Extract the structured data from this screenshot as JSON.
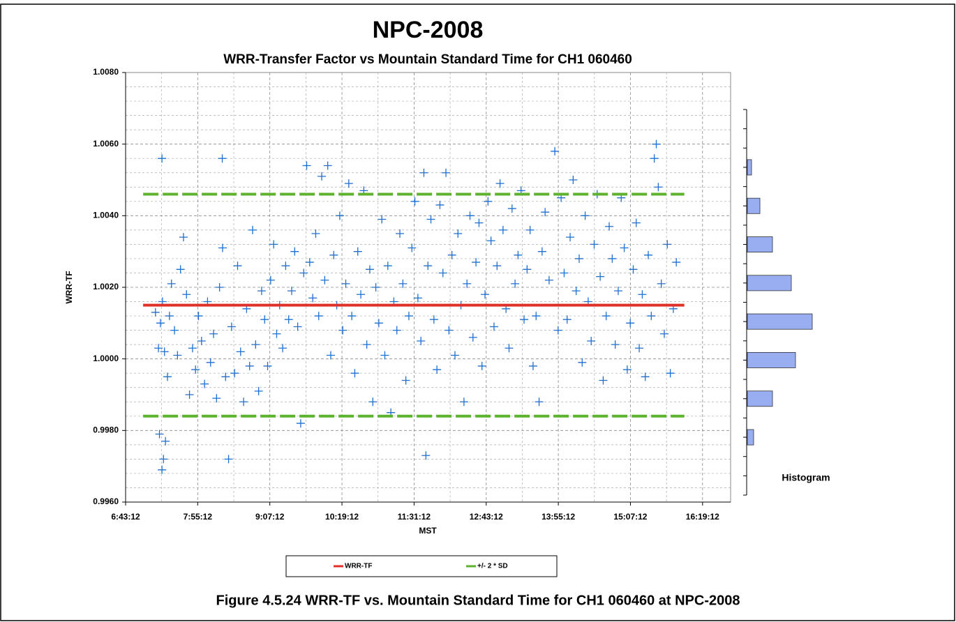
{
  "chart_data": [
    {
      "type": "scatter",
      "title": "NPC-2008",
      "subtitle": "WRR-Transfer Factor vs Mountain Standard Time for CH1 060460",
      "xlabel": "MST",
      "ylabel": "WRR-TF",
      "caption": "Figure 4.5.24 WRR-TF vs. Mountain Standard Time for CH1 060460 at NPC-2008",
      "xlim": [
        403.2,
        1007.2
      ],
      "xticks": [
        {
          "value": 403.2,
          "label": "6:43:12"
        },
        {
          "value": 475.2,
          "label": "7:55:12"
        },
        {
          "value": 547.2,
          "label": "9:07:12"
        },
        {
          "value": 619.2,
          "label": "10:19:12"
        },
        {
          "value": 691.2,
          "label": "11:31:12"
        },
        {
          "value": 763.2,
          "label": "12:43:12"
        },
        {
          "value": 835.2,
          "label": "13:55:12"
        },
        {
          "value": 907.2,
          "label": "15:07:12"
        },
        {
          "value": 979.2,
          "label": "16:19:12"
        }
      ],
      "ylim": [
        0.996,
        1.008
      ],
      "yticks": [
        {
          "value": 0.996,
          "label": "0.9960"
        },
        {
          "value": 0.998,
          "label": "0.9980"
        },
        {
          "value": 1.0,
          "label": "1.0000"
        },
        {
          "value": 1.002,
          "label": "1.0020"
        },
        {
          "value": 1.004,
          "label": "1.0040"
        },
        {
          "value": 1.006,
          "label": "1.0060"
        },
        {
          "value": 1.008,
          "label": "1.0080"
        }
      ],
      "grid": true,
      "legend": "bottom",
      "points": {
        "color": "#1f6fd1",
        "x": [
          439.5,
          499.7,
          439.5,
          441,
          443,
          437,
          436,
          438,
          440,
          442,
          445,
          447,
          449,
          433,
          452,
          455,
          458,
          461,
          464,
          467,
          470,
          473,
          476,
          479,
          482,
          485,
          488,
          491,
          494,
          497,
          500,
          503,
          506,
          509,
          512,
          515,
          518,
          521,
          524,
          527,
          530,
          533,
          536,
          539,
          542,
          545,
          548,
          551,
          554,
          557,
          560,
          563,
          566,
          569,
          572,
          575,
          578,
          581,
          584,
          587,
          590,
          593,
          596,
          599,
          602,
          605,
          608,
          611,
          614,
          617,
          620,
          623,
          626,
          629,
          632,
          635,
          638,
          641,
          644,
          647,
          650,
          653,
          656,
          659,
          662,
          665,
          668,
          671,
          674,
          677,
          680,
          683,
          686,
          689,
          692,
          695,
          698,
          701,
          703,
          705,
          708,
          711,
          714,
          717,
          720,
          723,
          726,
          729,
          732,
          735,
          738,
          741,
          744,
          747,
          750,
          753,
          756,
          759,
          762,
          765,
          768,
          771,
          774,
          777,
          780,
          783,
          786,
          789,
          792,
          795,
          798,
          801,
          804,
          807,
          810,
          813,
          816,
          819,
          822,
          826,
          831.7,
          835,
          838,
          841,
          844,
          847,
          850,
          853,
          856,
          859,
          862,
          865,
          868,
          871,
          874,
          877,
          880,
          883,
          886,
          889,
          892,
          895,
          898,
          901,
          904,
          907,
          910,
          913,
          916,
          919,
          922,
          925,
          928,
          931,
          933,
          935,
          938,
          941,
          944,
          947,
          950,
          953
        ],
        "values": [
          1.0056,
          1.0056,
          0.9969,
          0.9972,
          0.9977,
          0.9979,
          1.0003,
          1.001,
          1.0016,
          1.0002,
          0.9995,
          1.0012,
          1.0021,
          1.0013,
          1.0008,
          1.0001,
          1.0025,
          1.0034,
          1.0018,
          0.999,
          1.0003,
          0.9997,
          1.0012,
          1.0005,
          0.9993,
          1.0016,
          0.9999,
          1.0007,
          0.9989,
          1.002,
          1.0031,
          0.9995,
          0.9972,
          1.0009,
          0.9996,
          1.0026,
          1.0002,
          0.9988,
          1.0014,
          0.9998,
          1.0036,
          1.0004,
          0.9991,
          1.0019,
          1.0011,
          0.9998,
          1.0022,
          1.0032,
          1.0007,
          1.0015,
          1.0003,
          1.0026,
          1.0011,
          1.0019,
          1.003,
          1.0009,
          0.9982,
          1.0024,
          1.0054,
          1.0027,
          1.0017,
          1.0035,
          1.0012,
          1.0051,
          1.0022,
          1.0054,
          1.0001,
          1.0029,
          1.0015,
          1.004,
          1.0008,
          1.0021,
          1.0049,
          1.0012,
          0.9996,
          1.003,
          1.0018,
          1.0047,
          1.0004,
          1.0025,
          0.9988,
          1.002,
          1.001,
          1.0039,
          1.0001,
          1.0026,
          0.9985,
          1.0016,
          1.0008,
          1.0035,
          1.0021,
          0.9994,
          1.0012,
          1.0031,
          1.0044,
          1.0017,
          1.0005,
          1.0052,
          0.9973,
          1.0026,
          1.0039,
          1.0011,
          0.9997,
          1.0043,
          1.0024,
          1.0052,
          1.0008,
          1.0029,
          1.0001,
          1.0035,
          1.0015,
          0.9988,
          1.0021,
          1.004,
          1.0006,
          1.0027,
          1.0038,
          0.9998,
          1.0018,
          1.0044,
          1.0033,
          1.0009,
          1.0026,
          1.0049,
          1.0036,
          1.0014,
          1.0003,
          1.0042,
          1.0021,
          1.0029,
          1.0047,
          1.0011,
          1.0025,
          1.0036,
          0.9998,
          1.0012,
          0.9988,
          1.003,
          1.0041,
          1.0022,
          1.0058,
          1.0008,
          1.0045,
          1.0024,
          1.0011,
          1.0034,
          1.005,
          1.0019,
          1.0028,
          0.9999,
          1.004,
          1.0016,
          1.0005,
          1.0032,
          1.0046,
          1.0023,
          0.9994,
          1.0012,
          1.0037,
          1.0028,
          1.0004,
          1.0019,
          1.0045,
          1.0031,
          0.9997,
          1.001,
          1.0025,
          1.0038,
          1.0003,
          1.0018,
          0.9995,
          1.0029,
          1.0012,
          1.0056,
          1.006,
          1.0048,
          1.0021,
          1.0007,
          1.0032,
          0.9996,
          1.0014,
          1.0027
        ]
      },
      "series": [
        {
          "name": "WRR-TF",
          "color": "#e0302a",
          "style": "solid",
          "x": [
            420.7,
            961
          ],
          "values": [
            1.0015,
            1.0015
          ]
        },
        {
          "name": "+/- 2 * SD",
          "color": "#5db32e",
          "style": "dashed",
          "x": [
            420.7,
            961
          ],
          "values": [
            1.0046,
            1.0046
          ]
        },
        {
          "color": "#5db32e",
          "style": "dashed",
          "x": [
            420.7,
            961
          ],
          "values": [
            0.9984,
            0.9984
          ]
        }
      ]
    },
    {
      "type": "bar",
      "orientation": "horizontal",
      "label": "Histogram",
      "color": "#98aef0",
      "categories": [
        null,
        null,
        null,
        null,
        null,
        null,
        null,
        null,
        null,
        null
      ],
      "values": [
        0,
        2,
        6,
        12,
        21,
        31,
        23,
        12,
        3,
        0
      ],
      "xlim": [
        0,
        32
      ]
    }
  ]
}
